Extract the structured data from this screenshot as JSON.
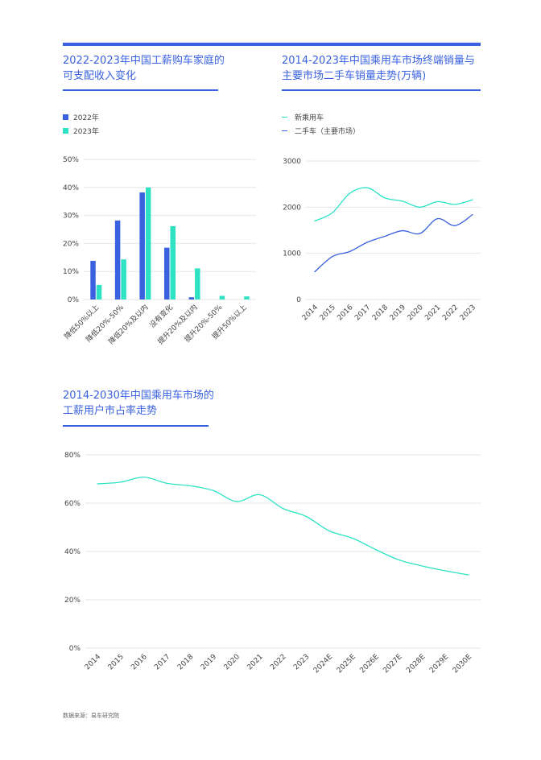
{
  "colors": {
    "accent": "#3a62e0",
    "series_blue": "#3a62e0",
    "series_teal": "#2de3c4",
    "grid": "#e6e6e6"
  },
  "chart_data": [
    {
      "type": "bar",
      "title": "2022-2023年中国工薪购车家庭的\n可支配收入变化",
      "categories": [
        "降低50%以上",
        "降低20%-50%",
        "降低20%及以内",
        "没有变化",
        "提升20%及以内",
        "提升20%-50%",
        "提升50%以上"
      ],
      "series": [
        {
          "name": "2022年",
          "color": "#3a62e0",
          "values": [
            13.8,
            28.2,
            38.2,
            18.5,
            0.8,
            0,
            0
          ]
        },
        {
          "name": "2023年",
          "color": "#2de3c4",
          "values": [
            5.2,
            14.3,
            40.0,
            26.2,
            11.1,
            1.3,
            1.1
          ]
        }
      ],
      "ylim": [
        0,
        50
      ],
      "yticks": [
        "0%",
        "10%",
        "20%",
        "30%",
        "40%",
        "50%"
      ],
      "grid": true,
      "legend": "top-left"
    },
    {
      "type": "line",
      "title": "2014-2023年中国乘用车市场终端销量与\n主要市场二手车销量走势(万辆)",
      "x": [
        "2014",
        "2015",
        "2016",
        "2017",
        "2018",
        "2019",
        "2020",
        "2021",
        "2022",
        "2023"
      ],
      "series": [
        {
          "name": "新乘用车",
          "color": "#2de3c4",
          "values": [
            1700,
            1880,
            2300,
            2420,
            2200,
            2130,
            2000,
            2120,
            2060,
            2160
          ]
        },
        {
          "name": "二手车（主要市场）",
          "color": "#3a62e0",
          "values": [
            600,
            930,
            1040,
            1240,
            1370,
            1490,
            1430,
            1750,
            1600,
            1840
          ]
        }
      ],
      "ylim": [
        0,
        3000
      ],
      "yticks": [
        "0",
        "1000",
        "2000",
        "3000"
      ],
      "grid": true,
      "legend": "top-left"
    },
    {
      "type": "line",
      "title": "2014-2030年中国乘用车市场的\n工薪用户市占率走势",
      "x": [
        "2014",
        "2015",
        "2016",
        "2017",
        "2018",
        "2019",
        "2020",
        "2021",
        "2022",
        "2023",
        "2024E",
        "2025E",
        "2026E",
        "2027E",
        "2028E",
        "2029E",
        "2030E"
      ],
      "series": [
        {
          "color": "#2de3c4",
          "values": [
            68,
            68.7,
            70.8,
            68.2,
            67.2,
            65.2,
            60.7,
            63.5,
            57.8,
            54.5,
            48.5,
            45.5,
            40.8,
            36.5,
            34,
            32,
            30.3
          ]
        }
      ],
      "ylim": [
        0,
        80
      ],
      "yticks": [
        "0%",
        "20%",
        "40%",
        "60%",
        "80%"
      ],
      "grid": true
    }
  ],
  "footer": {
    "source": "数据来源：易车研究院"
  }
}
